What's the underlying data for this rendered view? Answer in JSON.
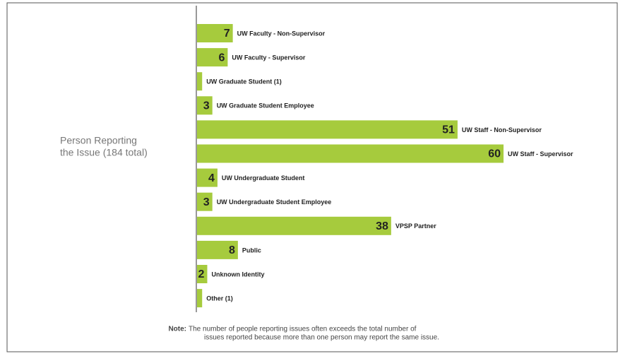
{
  "chart_data": {
    "type": "hbar",
    "axis_title": [
      "Person Reporting",
      "the Issue (184 total)"
    ],
    "categories": [
      "UW Faculty - Non-Supervisor",
      "UW Faculty - Supervisor",
      "UW Graduate Student (1)",
      "UW Graduate Student Employee",
      "UW Staff - Non-Supervisor",
      "UW Staff - Supervisor",
      "UW Undergraduate Student",
      "UW Undergraduate Student Employee",
      "VPSP Partner",
      "Public",
      "Unknown Identity",
      "Other (1)"
    ],
    "values": [
      7,
      6,
      1,
      3,
      51,
      60,
      4,
      3,
      38,
      8,
      2,
      1
    ],
    "value_labels": [
      "7",
      "6",
      null,
      "3",
      "51",
      "60",
      "4",
      "3",
      "38",
      "8",
      "2",
      null
    ],
    "color": "#a6cb3d",
    "xlim": [
      0,
      60
    ],
    "note": {
      "label": "Note:",
      "lines": [
        "The number of people reporting issues often exceeds the total number of",
        "issues reported because more than one person may report the same issue."
      ]
    }
  }
}
